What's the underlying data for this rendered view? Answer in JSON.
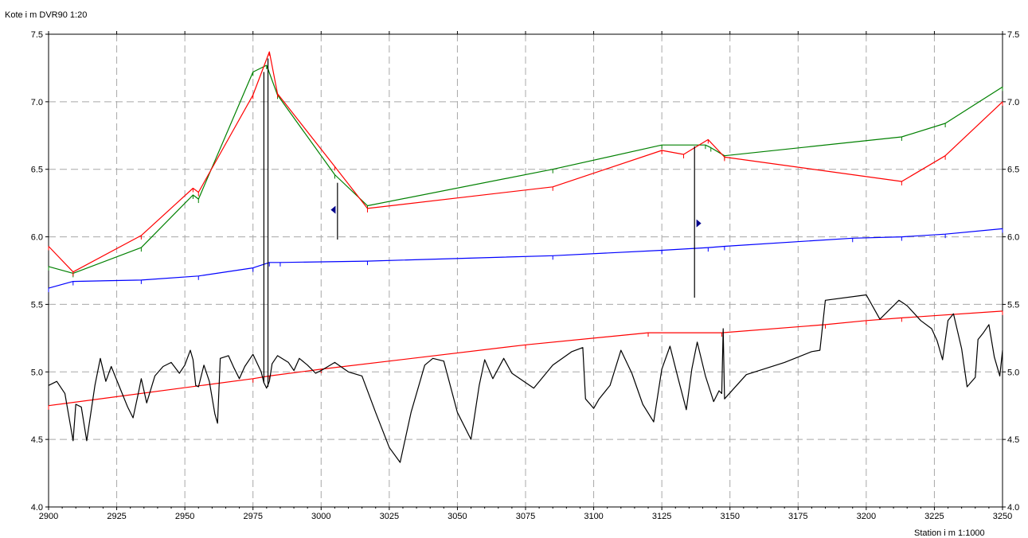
{
  "chart_data": {
    "type": "line",
    "ylabel": "Kote i m DVR90 1:20",
    "xlabel": "Station i m  1:1000",
    "xlim": [
      2900,
      3250
    ],
    "ylim": [
      4.0,
      7.5
    ],
    "x_ticks": [
      2900,
      2925,
      2950,
      2975,
      3000,
      3025,
      3050,
      3075,
      3100,
      3125,
      3150,
      3175,
      3200,
      3225,
      3250
    ],
    "y_ticks": [
      4.0,
      4.5,
      5.0,
      5.5,
      6.0,
      6.5,
      7.0,
      7.5
    ],
    "y_tick_labels": [
      "4.0",
      "4.5",
      "5.0",
      "5.5",
      "6.0",
      "6.5",
      "7.0",
      "7.5"
    ],
    "grid": true,
    "series": [
      {
        "color": "#008000",
        "x": [
          2900,
          2909,
          2934,
          2953,
          2955,
          2975,
          2980,
          2984,
          3005,
          3017,
          3085,
          3125,
          3141,
          3143,
          3148,
          3213,
          3229,
          3250
        ],
        "y": [
          5.78,
          5.73,
          5.92,
          6.31,
          6.28,
          7.22,
          7.27,
          7.05,
          6.46,
          6.23,
          6.5,
          6.68,
          6.68,
          6.66,
          6.6,
          6.74,
          6.84,
          7.11
        ]
      },
      {
        "color": "#ff0000",
        "x": [
          2900,
          2909,
          2934,
          2953,
          2955,
          2975,
          2981,
          2984,
          3005,
          3017,
          3085,
          3125,
          3133,
          3142,
          3148,
          3213,
          3229,
          3250
        ],
        "y": [
          5.93,
          5.74,
          6.01,
          6.36,
          6.33,
          7.05,
          7.37,
          7.06,
          6.52,
          6.21,
          6.37,
          6.64,
          6.61,
          6.72,
          6.59,
          6.41,
          6.6,
          7.0
        ]
      },
      {
        "color": "#0000ff",
        "x": [
          2900,
          2909,
          2934,
          2955,
          2975,
          2981,
          2985,
          3017,
          3085,
          3125,
          3142,
          3148,
          3195,
          3213,
          3229,
          3250
        ],
        "y": [
          5.62,
          5.67,
          5.68,
          5.71,
          5.77,
          5.81,
          5.81,
          5.82,
          5.86,
          5.9,
          5.92,
          5.93,
          5.99,
          6.0,
          6.02,
          6.06
        ]
      },
      {
        "color": "#ff0000",
        "x": [
          2900,
          2975,
          2981,
          3000,
          3075,
          3120,
          3147,
          3185,
          3200,
          3213,
          3250
        ],
        "y": [
          4.75,
          4.95,
          4.97,
          5.02,
          5.2,
          5.29,
          5.29,
          5.35,
          5.38,
          5.4,
          5.45
        ]
      },
      {
        "color": "#000000",
        "x": [
          2900,
          2903,
          2906,
          2909,
          2910,
          2912,
          2914,
          2917,
          2919,
          2921,
          2923,
          2926,
          2929,
          2931,
          2933,
          2934,
          2936,
          2939,
          2942,
          2945,
          2948,
          2950,
          2952,
          2953,
          2954,
          2955,
          2957,
          2959,
          2961,
          2962,
          2963,
          2966,
          2968,
          2970,
          2972,
          2975,
          2978,
          2979,
          2980,
          2981,
          2982,
          2984,
          2988,
          2990,
          2992,
          2995,
          2998,
          3000,
          3005,
          3010,
          3015,
          3020,
          3025,
          3029,
          3033,
          3038,
          3041,
          3045,
          3050,
          3055,
          3058,
          3060,
          3063,
          3067,
          3070,
          3078,
          3085,
          3092,
          3096,
          3097,
          3100,
          3102,
          3106,
          3110,
          3114,
          3118,
          3122,
          3125,
          3128,
          3131,
          3134,
          3136,
          3138,
          3141,
          3144,
          3146,
          3147,
          3147.5,
          3148,
          3156,
          3170,
          3180,
          3183,
          3185,
          3200,
          3205,
          3212,
          3215,
          3220,
          3224,
          3226,
          3228,
          3230,
          3232,
          3235,
          3237,
          3240,
          3241,
          3243,
          3245,
          3247,
          3249,
          3250
        ],
        "y": [
          4.9,
          4.93,
          4.84,
          4.49,
          4.76,
          4.74,
          4.49,
          4.9,
          5.1,
          4.93,
          5.04,
          4.89,
          4.74,
          4.66,
          4.85,
          4.95,
          4.77,
          4.97,
          5.04,
          5.07,
          4.99,
          5.05,
          5.16,
          5.09,
          4.9,
          4.89,
          5.05,
          4.93,
          4.69,
          4.62,
          5.1,
          5.12,
          5.03,
          4.95,
          5.04,
          5.13,
          5.0,
          4.92,
          4.88,
          4.93,
          5.06,
          5.12,
          5.07,
          5.01,
          5.1,
          5.05,
          4.99,
          5.01,
          5.07,
          5.0,
          4.97,
          4.7,
          4.44,
          4.33,
          4.7,
          5.05,
          5.1,
          5.08,
          4.7,
          4.5,
          4.9,
          5.09,
          4.95,
          5.1,
          4.99,
          4.88,
          5.05,
          5.15,
          5.18,
          4.8,
          4.73,
          4.8,
          4.9,
          5.16,
          4.99,
          4.76,
          4.63,
          5.02,
          5.19,
          4.95,
          4.72,
          5.02,
          5.22,
          4.97,
          4.78,
          4.86,
          4.84,
          5.32,
          4.8,
          4.98,
          5.07,
          5.15,
          5.16,
          5.53,
          5.57,
          5.39,
          5.53,
          5.49,
          5.38,
          5.32,
          5.23,
          5.09,
          5.38,
          5.43,
          5.17,
          4.89,
          4.96,
          5.24,
          5.29,
          5.35,
          5.11,
          4.97,
          5.16
        ]
      }
    ],
    "vertical_lines": [
      {
        "x": 2979,
        "y1": 4.92,
        "y2": 7.22
      },
      {
        "x": 2980.5,
        "y1": 4.89,
        "y2": 7.32
      },
      {
        "x": 3006,
        "y1": 5.98,
        "y2": 6.4
      },
      {
        "x": 3137,
        "y1": 5.55,
        "y2": 6.67
      }
    ],
    "markers": [
      {
        "x": 3005,
        "y": 6.2,
        "direction": "left",
        "color": "#00008b"
      },
      {
        "x": 3138,
        "y": 6.1,
        "direction": "right",
        "color": "#00008b"
      }
    ]
  }
}
